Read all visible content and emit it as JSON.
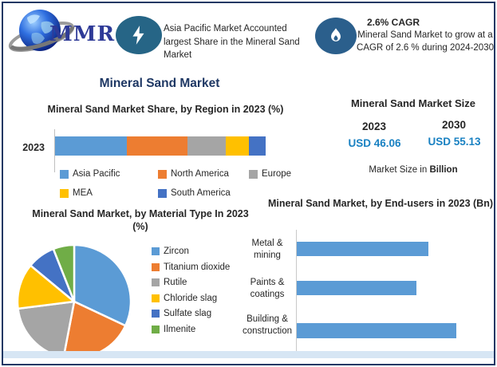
{
  "header": {
    "logo_text": "MMR",
    "highlight1": {
      "text": "Asia Pacific Market Accounted largest Share in the Mineral Sand Market"
    },
    "highlight2": {
      "title": "2.6% CAGR",
      "text": "Mineral Sand Market to grow at a CAGR of 2.6 % during 2024-2030"
    }
  },
  "main_title": "Mineral Sand Market",
  "market_size": {
    "title": "Mineral Sand Market Size",
    "year_start": "2023",
    "year_end": "2030",
    "value_start": "USD 46.06",
    "value_end": "USD 55.13",
    "note_prefix": "Market Size in ",
    "note_bold": "Billion",
    "value_color": "#1981C2"
  },
  "colors": {
    "border": "#1F3864",
    "title_navy": "#1F3864",
    "icon_circle_bolt": "#266586",
    "icon_circle_flame": "#2B5F8C",
    "bottom_strip": "#D7E6F4"
  },
  "chart_data": [
    {
      "type": "bar",
      "variant": "stacked-horizontal",
      "title": "Mineral Sand Market Share, by Region in 2023 (%)",
      "categories": [
        "2023"
      ],
      "series": [
        {
          "name": "Asia Pacific",
          "values": [
            34
          ],
          "color": "#5B9BD5"
        },
        {
          "name": "North America",
          "values": [
            29
          ],
          "color": "#ED7D31"
        },
        {
          "name": "Europe",
          "values": [
            18
          ],
          "color": "#A5A5A5"
        },
        {
          "name": "MEA",
          "values": [
            11
          ],
          "color": "#FFC000"
        },
        {
          "name": "South America",
          "values": [
            8
          ],
          "color": "#4472C4"
        }
      ],
      "xlim": [
        0,
        100
      ],
      "unit": "%",
      "legend_position": "bottom"
    },
    {
      "type": "pie",
      "title": "Mineral Sand Market, by Material Type In 2023 (%)",
      "labels": [
        "Zircon",
        "Titanium dioxide",
        "Rutile",
        "Chloride slag",
        "Sulfate slag",
        "Ilmenite"
      ],
      "values": [
        32,
        21,
        20,
        13,
        8,
        6
      ],
      "colors": [
        "#5B9BD5",
        "#ED7D31",
        "#A5A5A5",
        "#FFC000",
        "#4472C4",
        "#70AD47"
      ],
      "unit": "%",
      "legend_position": "right"
    },
    {
      "type": "bar",
      "variant": "horizontal",
      "title": "Mineral Sand Market, by End-users in 2023 (Bn)",
      "categories": [
        "Metal & mining",
        "Paints & coatings",
        "Building & construction"
      ],
      "values": [
        16.5,
        15,
        20
      ],
      "xlim": [
        0,
        20.5
      ],
      "unit": "Bn",
      "bar_color": "#5B9BD5",
      "grid": false
    }
  ]
}
